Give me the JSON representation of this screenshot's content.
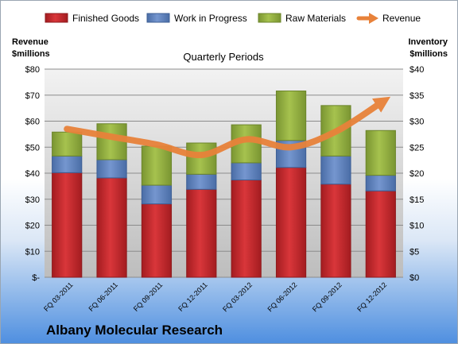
{
  "chart_data": {
    "type": "bar",
    "stacked": true,
    "title": "Quarterly Periods",
    "left_axis_title": [
      "Revenue",
      "$millions"
    ],
    "right_axis_title": [
      "Inventory",
      "$millions"
    ],
    "left_axis": {
      "min": 0,
      "max": 80,
      "step": 10,
      "tick_labels": [
        "$-",
        "$10",
        "$20",
        "$30",
        "$40",
        "$50",
        "$60",
        "$70",
        "$80"
      ]
    },
    "right_axis": {
      "min": 0,
      "max": 40,
      "step": 5,
      "tick_labels": [
        "$0",
        "$5",
        "$10",
        "$15",
        "$20",
        "$25",
        "$30",
        "$35",
        "$40"
      ]
    },
    "categories": [
      "FQ 03-2011",
      "FQ 06-2011",
      "FQ 09-2011",
      "FQ 12-2011",
      "FQ 03-2012",
      "FQ 06-2012",
      "FQ 09-2012",
      "FQ 12-2012"
    ],
    "series": [
      {
        "name": "Finished Goods",
        "axis": "right",
        "color": "#c0282c",
        "values": [
          20.1,
          19.1,
          14.1,
          16.9,
          18.7,
          21.1,
          17.9,
          16.6
        ]
      },
      {
        "name": "Work in Progress",
        "axis": "right",
        "color": "#5b7fbd",
        "values": [
          3.2,
          3.5,
          3.6,
          2.9,
          3.3,
          5.2,
          5.4,
          3.0
        ]
      },
      {
        "name": "Raw Materials",
        "axis": "right",
        "color": "#8fac3c",
        "values": [
          4.6,
          6.9,
          7.5,
          6.0,
          7.3,
          9.5,
          9.7,
          8.6
        ]
      }
    ],
    "line": {
      "name": "Revenue",
      "axis": "left",
      "color": "#e8823a",
      "values": [
        57,
        54,
        51,
        47,
        53,
        50,
        56,
        67
      ]
    },
    "legend_position": "top",
    "grid": true
  },
  "company_name": "Albany Molecular Research"
}
